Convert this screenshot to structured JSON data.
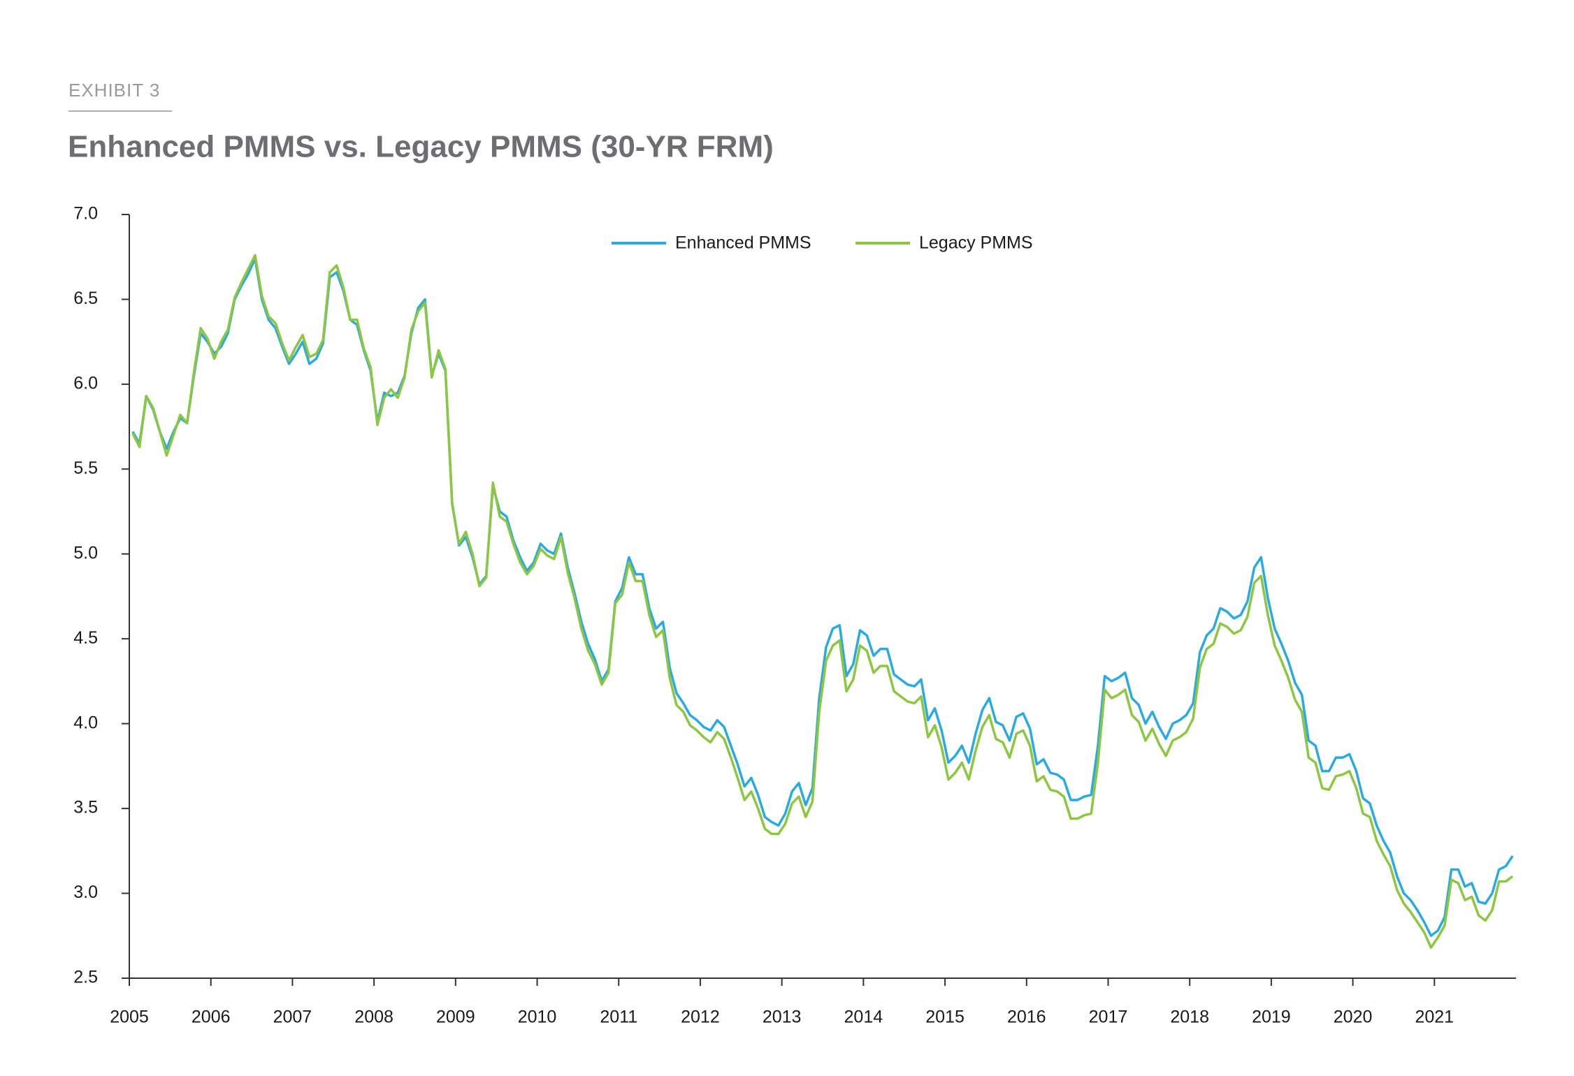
{
  "chart_data": {
    "type": "line",
    "label": "EXHIBIT 3",
    "title": "Enhanced PMMS vs. Legacy PMMS (30-YR FRM)",
    "x": [
      2005.042,
      2005.125,
      2005.208,
      2005.292,
      2005.375,
      2005.458,
      2005.542,
      2005.625,
      2005.708,
      2005.792,
      2005.875,
      2005.958,
      2006.042,
      2006.125,
      2006.208,
      2006.292,
      2006.375,
      2006.458,
      2006.542,
      2006.625,
      2006.708,
      2006.792,
      2006.875,
      2006.958,
      2007.042,
      2007.125,
      2007.208,
      2007.292,
      2007.375,
      2007.458,
      2007.542,
      2007.625,
      2007.708,
      2007.792,
      2007.875,
      2007.958,
      2008.042,
      2008.125,
      2008.208,
      2008.292,
      2008.375,
      2008.458,
      2008.542,
      2008.625,
      2008.708,
      2008.792,
      2008.875,
      2008.958,
      2009.042,
      2009.125,
      2009.208,
      2009.292,
      2009.375,
      2009.458,
      2009.542,
      2009.625,
      2009.708,
      2009.792,
      2009.875,
      2009.958,
      2010.042,
      2010.125,
      2010.208,
      2010.292,
      2010.375,
      2010.458,
      2010.542,
      2010.625,
      2010.708,
      2010.792,
      2010.875,
      2010.958,
      2011.042,
      2011.125,
      2011.208,
      2011.292,
      2011.375,
      2011.458,
      2011.542,
      2011.625,
      2011.708,
      2011.792,
      2011.875,
      2011.958,
      2012.042,
      2012.125,
      2012.208,
      2012.292,
      2012.375,
      2012.458,
      2012.542,
      2012.625,
      2012.708,
      2012.792,
      2012.875,
      2012.958,
      2013.042,
      2013.125,
      2013.208,
      2013.292,
      2013.375,
      2013.458,
      2013.542,
      2013.625,
      2013.708,
      2013.792,
      2013.875,
      2013.958,
      2014.042,
      2014.125,
      2014.208,
      2014.292,
      2014.375,
      2014.458,
      2014.542,
      2014.625,
      2014.708,
      2014.792,
      2014.875,
      2014.958,
      2015.042,
      2015.125,
      2015.208,
      2015.292,
      2015.375,
      2015.458,
      2015.542,
      2015.625,
      2015.708,
      2015.792,
      2015.875,
      2015.958,
      2016.042,
      2016.125,
      2016.208,
      2016.292,
      2016.375,
      2016.458,
      2016.542,
      2016.625,
      2016.708,
      2016.792,
      2016.875,
      2016.958,
      2017.042,
      2017.125,
      2017.208,
      2017.292,
      2017.375,
      2017.458,
      2017.542,
      2017.625,
      2017.708,
      2017.792,
      2017.875,
      2017.958,
      2018.042,
      2018.125,
      2018.208,
      2018.292,
      2018.375,
      2018.458,
      2018.542,
      2018.625,
      2018.708,
      2018.792,
      2018.875,
      2018.958,
      2019.042,
      2019.125,
      2019.208,
      2019.292,
      2019.375,
      2019.458,
      2019.542,
      2019.625,
      2019.708,
      2019.792,
      2019.875,
      2019.958,
      2020.042,
      2020.125,
      2020.208,
      2020.292,
      2020.375,
      2020.458,
      2020.542,
      2020.625,
      2020.708,
      2020.792,
      2020.875,
      2020.958,
      2021.042,
      2021.125,
      2021.208,
      2021.292,
      2021.375,
      2021.458,
      2021.542,
      2021.625,
      2021.708,
      2021.792,
      2021.875,
      2021.958
    ],
    "series": [
      {
        "name": "Enhanced PMMS",
        "color": "#29abe2",
        "values": [
          5.72,
          5.65,
          5.93,
          5.85,
          5.72,
          5.62,
          5.72,
          5.8,
          5.77,
          6.05,
          6.3,
          6.25,
          6.18,
          6.22,
          6.3,
          6.5,
          6.58,
          6.65,
          6.74,
          6.5,
          6.38,
          6.33,
          6.22,
          6.12,
          6.18,
          6.25,
          6.12,
          6.15,
          6.24,
          6.63,
          6.66,
          6.55,
          6.38,
          6.35,
          6.2,
          6.08,
          5.78,
          5.95,
          5.93,
          5.95,
          6.05,
          6.3,
          6.45,
          6.5,
          6.05,
          6.18,
          6.08,
          5.3,
          5.05,
          5.1,
          4.98,
          4.82,
          4.87,
          5.4,
          5.25,
          5.22,
          5.08,
          4.98,
          4.9,
          4.95,
          5.06,
          5.02,
          5.0,
          5.12,
          4.92,
          4.77,
          4.6,
          4.47,
          4.38,
          4.25,
          4.32,
          4.72,
          4.8,
          4.98,
          4.88,
          4.88,
          4.68,
          4.56,
          4.6,
          4.33,
          4.18,
          4.12,
          4.05,
          4.02,
          3.98,
          3.96,
          4.02,
          3.98,
          3.87,
          3.76,
          3.63,
          3.68,
          3.58,
          3.45,
          3.42,
          3.4,
          3.47,
          3.6,
          3.65,
          3.52,
          3.62,
          4.15,
          4.45,
          4.56,
          4.58,
          4.28,
          4.35,
          4.55,
          4.52,
          4.4,
          4.44,
          4.44,
          4.29,
          4.26,
          4.23,
          4.22,
          4.26,
          4.02,
          4.09,
          3.96,
          3.77,
          3.81,
          3.87,
          3.77,
          3.94,
          4.08,
          4.15,
          4.01,
          3.99,
          3.9,
          4.04,
          4.06,
          3.97,
          3.76,
          3.79,
          3.71,
          3.7,
          3.67,
          3.55,
          3.55,
          3.57,
          3.58,
          3.87,
          4.28,
          4.25,
          4.27,
          4.3,
          4.15,
          4.11,
          4.0,
          4.07,
          3.98,
          3.91,
          4.0,
          4.02,
          4.05,
          4.12,
          4.42,
          4.52,
          4.56,
          4.68,
          4.66,
          4.62,
          4.64,
          4.72,
          4.92,
          4.98,
          4.74,
          4.56,
          4.47,
          4.37,
          4.24,
          4.17,
          3.9,
          3.87,
          3.72,
          3.72,
          3.8,
          3.8,
          3.82,
          3.72,
          3.56,
          3.53,
          3.4,
          3.31,
          3.24,
          3.1,
          3.0,
          2.96,
          2.9,
          2.83,
          2.75,
          2.78,
          2.86,
          3.14,
          3.14,
          3.04,
          3.06,
          2.95,
          2.94,
          3.0,
          3.14,
          3.16,
          3.22
        ]
      },
      {
        "name": "Legacy PMMS",
        "color": "#8dc63f",
        "values": [
          5.71,
          5.63,
          5.93,
          5.86,
          5.72,
          5.58,
          5.7,
          5.82,
          5.77,
          6.07,
          6.33,
          6.27,
          6.15,
          6.25,
          6.32,
          6.51,
          6.6,
          6.68,
          6.76,
          6.52,
          6.4,
          6.36,
          6.24,
          6.14,
          6.22,
          6.29,
          6.16,
          6.18,
          6.26,
          6.66,
          6.7,
          6.57,
          6.38,
          6.38,
          6.21,
          6.1,
          5.76,
          5.92,
          5.97,
          5.92,
          6.04,
          6.32,
          6.43,
          6.48,
          6.04,
          6.2,
          6.09,
          5.29,
          5.06,
          5.13,
          5.0,
          4.81,
          4.86,
          5.42,
          5.22,
          5.19,
          5.06,
          4.95,
          4.88,
          4.93,
          5.03,
          4.99,
          4.97,
          5.1,
          4.89,
          4.74,
          4.56,
          4.43,
          4.35,
          4.23,
          4.3,
          4.71,
          4.76,
          4.95,
          4.84,
          4.84,
          4.64,
          4.51,
          4.55,
          4.27,
          4.11,
          4.07,
          3.99,
          3.96,
          3.92,
          3.89,
          3.95,
          3.91,
          3.8,
          3.68,
          3.55,
          3.6,
          3.5,
          3.38,
          3.35,
          3.35,
          3.41,
          3.53,
          3.57,
          3.45,
          3.54,
          4.07,
          4.37,
          4.46,
          4.49,
          4.19,
          4.26,
          4.46,
          4.43,
          4.3,
          4.34,
          4.34,
          4.19,
          4.16,
          4.13,
          4.12,
          4.16,
          3.92,
          3.99,
          3.86,
          3.67,
          3.71,
          3.77,
          3.67,
          3.84,
          3.98,
          4.05,
          3.91,
          3.89,
          3.8,
          3.94,
          3.96,
          3.87,
          3.66,
          3.69,
          3.61,
          3.6,
          3.57,
          3.44,
          3.44,
          3.46,
          3.47,
          3.77,
          4.2,
          4.15,
          4.17,
          4.2,
          4.05,
          4.01,
          3.9,
          3.97,
          3.88,
          3.81,
          3.9,
          3.92,
          3.95,
          4.03,
          4.33,
          4.44,
          4.47,
          4.59,
          4.57,
          4.53,
          4.55,
          4.63,
          4.83,
          4.87,
          4.64,
          4.46,
          4.37,
          4.27,
          4.14,
          4.07,
          3.8,
          3.77,
          3.62,
          3.61,
          3.69,
          3.7,
          3.72,
          3.62,
          3.47,
          3.45,
          3.31,
          3.23,
          3.16,
          3.02,
          2.94,
          2.89,
          2.83,
          2.77,
          2.68,
          2.74,
          2.81,
          3.08,
          3.06,
          2.96,
          2.98,
          2.87,
          2.84,
          2.9,
          3.07,
          3.07,
          3.1
        ]
      }
    ],
    "xlim": [
      2005,
      2022
    ],
    "xticks": [
      2005,
      2006,
      2007,
      2008,
      2009,
      2010,
      2011,
      2012,
      2013,
      2014,
      2015,
      2016,
      2017,
      2018,
      2019,
      2020,
      2021
    ],
    "ylim": [
      2.5,
      7.0
    ],
    "yticks": [
      {
        "value": 2.5,
        "label": "2.5"
      },
      {
        "value": 3,
        "label": "3.0"
      },
      {
        "value": 3.5,
        "label": "3.5"
      },
      {
        "value": 4,
        "label": "4.0"
      },
      {
        "value": 4.5,
        "label": "4.5"
      },
      {
        "value": 5,
        "label": "5.0"
      },
      {
        "value": 5.5,
        "label": "5.5"
      },
      {
        "value": 6,
        "label": "6.0"
      },
      {
        "value": 6.5,
        "label": "6.5"
      },
      {
        "value": 7,
        "label": "7.0"
      }
    ],
    "grid": false,
    "legend": "top"
  }
}
